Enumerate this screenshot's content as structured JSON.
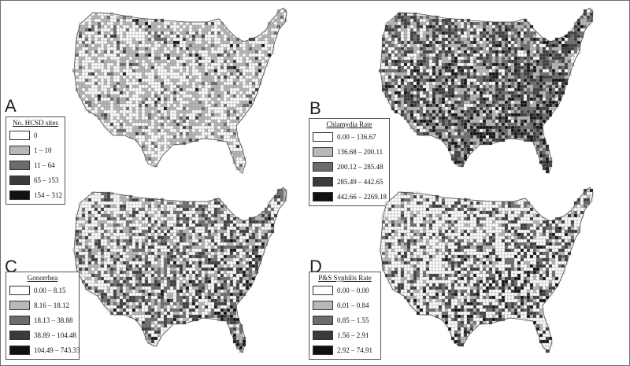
{
  "panels": [
    {
      "letter": "A",
      "legend_title": "No. HCSD sites",
      "colors": [
        "#ffffff",
        "#b8b8b8",
        "#6c6c6c",
        "#3b3b3b",
        "#111111"
      ],
      "classes": [
        "0",
        "1 – 10",
        "11 – 64",
        "65 – 153",
        "154 – 312"
      ],
      "weights": [
        0.45,
        0.43,
        0.08,
        0.03,
        0.01
      ]
    },
    {
      "letter": "B",
      "legend_title": "Chlamydia Rate",
      "colors": [
        "#ffffff",
        "#b8b8b8",
        "#6c6c6c",
        "#3b3b3b",
        "#111111"
      ],
      "classes": [
        "0.00 – 136.67",
        "136.68 – 200.11",
        "200.12 – 285.48",
        "285.49 – 442.65",
        "442.66 – 2269.18"
      ],
      "weights": [
        0.22,
        0.18,
        0.16,
        0.18,
        0.26
      ]
    },
    {
      "letter": "C",
      "legend_title": "Gonorrhea",
      "colors": [
        "#ffffff",
        "#b8b8b8",
        "#6c6c6c",
        "#3b3b3b",
        "#111111"
      ],
      "classes": [
        "0.00 – 8.15",
        "8.16 – 18.12",
        "18.13 – 38.88",
        "38.89 – 104.48",
        "104.49 – 743.33"
      ],
      "weights": [
        0.38,
        0.16,
        0.14,
        0.14,
        0.18
      ]
    },
    {
      "letter": "D",
      "legend_title": "P&S Syphilis Rate",
      "colors": [
        "#ffffff",
        "#b8b8b8",
        "#6c6c6c",
        "#3b3b3b",
        "#111111"
      ],
      "classes": [
        "0.00 – 0.00",
        "0.01 – 0.84",
        "0.85 – 1.55",
        "1.56 – 2.91",
        "2.92 – 74.91"
      ],
      "weights": [
        0.48,
        0.1,
        0.1,
        0.12,
        0.2
      ]
    }
  ]
}
